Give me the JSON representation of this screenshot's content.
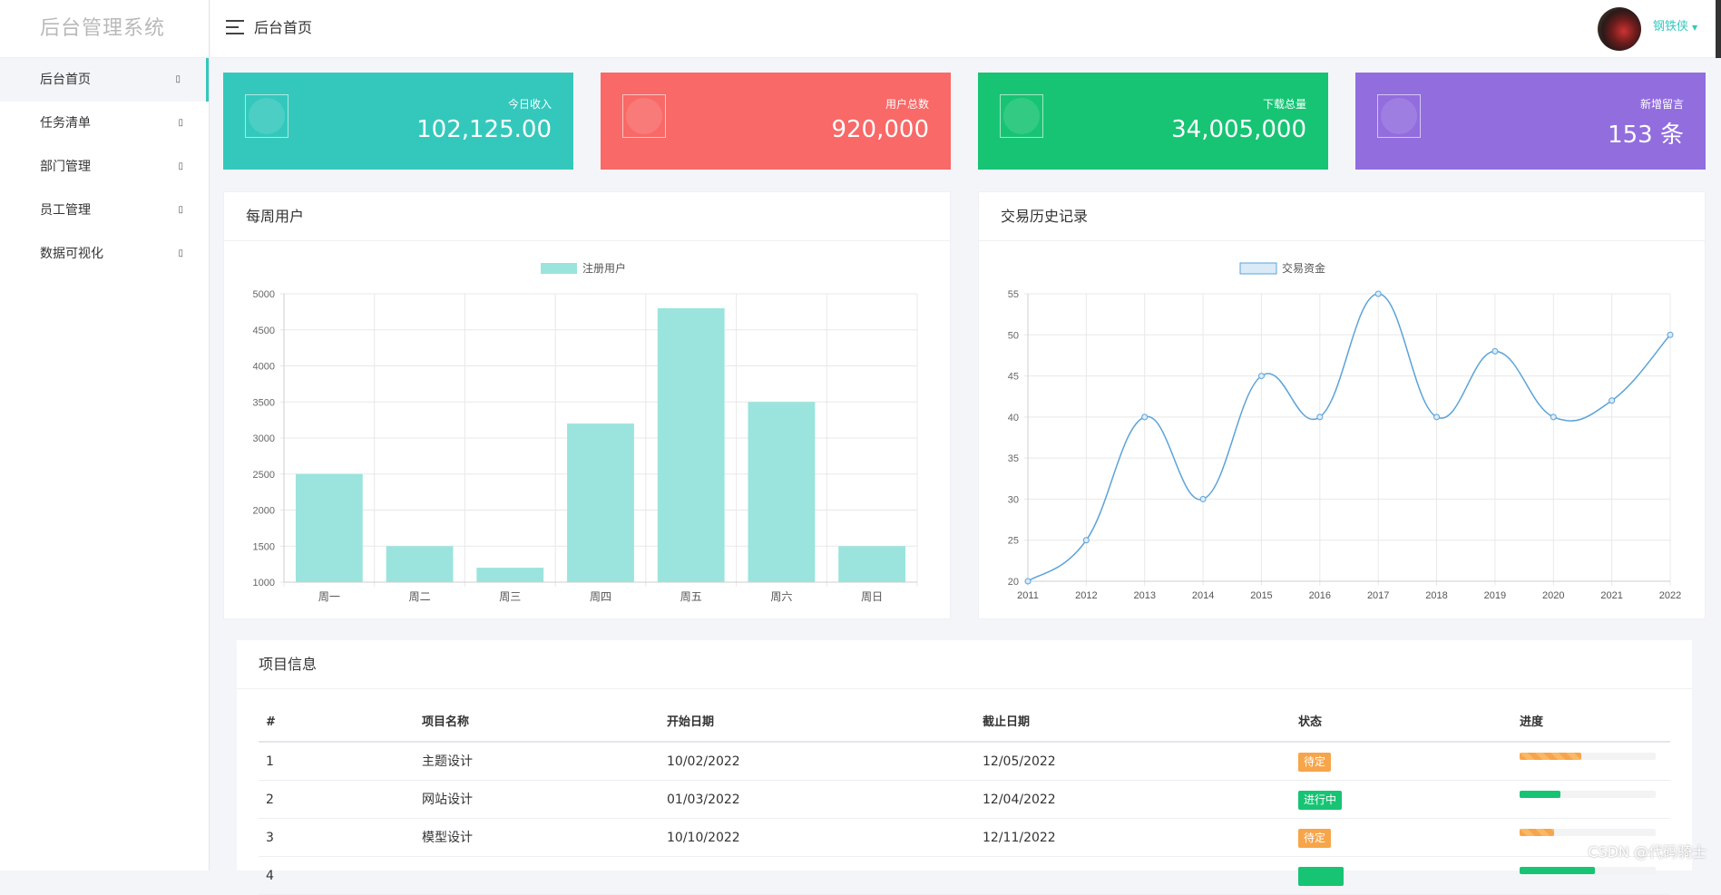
{
  "brand": "后台管理系统",
  "sidebar": {
    "items": [
      {
        "label": "后台首页",
        "arrow": "▯"
      },
      {
        "label": "任务清单",
        "arrow": "▯"
      },
      {
        "label": "部门管理",
        "arrow": "▯"
      },
      {
        "label": "员工管理",
        "arrow": "▯"
      },
      {
        "label": "数据可视化",
        "arrow": "▯"
      }
    ]
  },
  "header": {
    "title": "后台首页",
    "user": "钢铁侠",
    "caret": "▼"
  },
  "stats": [
    {
      "label": "今日收入",
      "value": "102,125.00",
      "color": "#34c8bc"
    },
    {
      "label": "用户总数",
      "value": "920,000",
      "color": "#f86967"
    },
    {
      "label": "下载总量",
      "value": "34,005,000",
      "color": "#17c474"
    },
    {
      "label": "新增留言",
      "value": "153 条",
      "color": "#926dde"
    }
  ],
  "charts": {
    "weekly_title": "每周用户",
    "history_title": "交易历史记录"
  },
  "chart_data": [
    {
      "type": "bar",
      "title": "每周用户",
      "categories": [
        "周一",
        "周二",
        "周三",
        "周四",
        "周五",
        "周六",
        "周日"
      ],
      "series": [
        {
          "name": "注册用户",
          "values": [
            2500,
            1500,
            1200,
            3200,
            4800,
            3500,
            1500
          ],
          "color": "#9ae4dd"
        }
      ],
      "ylim": [
        1000,
        5000
      ],
      "yticks": [
        1000,
        1500,
        2000,
        2500,
        3000,
        3500,
        4000,
        4500,
        5000
      ],
      "grid": true,
      "legend": "top-center"
    },
    {
      "type": "line",
      "title": "交易历史记录",
      "x": [
        2011,
        2012,
        2013,
        2014,
        2015,
        2016,
        2017,
        2018,
        2019,
        2020,
        2021,
        2022
      ],
      "series": [
        {
          "name": "交易资金",
          "values": [
            20,
            25,
            40,
            30,
            45,
            40,
            55,
            40,
            48,
            40,
            42,
            50
          ],
          "color": "#5ba3d9"
        }
      ],
      "ylim": [
        20,
        55
      ],
      "yticks": [
        20,
        25,
        30,
        35,
        40,
        45,
        50,
        55
      ],
      "grid": true,
      "legend": "top-center"
    }
  ],
  "table": {
    "title": "项目信息",
    "headers": [
      "#",
      "项目名称",
      "开始日期",
      "截止日期",
      "状态",
      "进度"
    ],
    "rows": [
      {
        "id": "1",
        "name": "主题设计",
        "start": "10/02/2022",
        "end": "12/05/2022",
        "status": "待定",
        "status_color": "#f7a54a",
        "progress": 0.45
      },
      {
        "id": "2",
        "name": "网站设计",
        "start": "01/03/2022",
        "end": "12/04/2022",
        "status": "进行中",
        "status_color": "#17c474",
        "progress": 0.3
      },
      {
        "id": "3",
        "name": "模型设计",
        "start": "10/10/2022",
        "end": "12/11/2022",
        "status": "待定",
        "status_color": "#f7a54a",
        "progress": 0.25
      },
      {
        "id": "4",
        "name": "",
        "start": "",
        "end": "",
        "status": "",
        "status_color": "#17c474",
        "progress": 0.55
      }
    ]
  },
  "watermark": "CSDN @代码骑士"
}
